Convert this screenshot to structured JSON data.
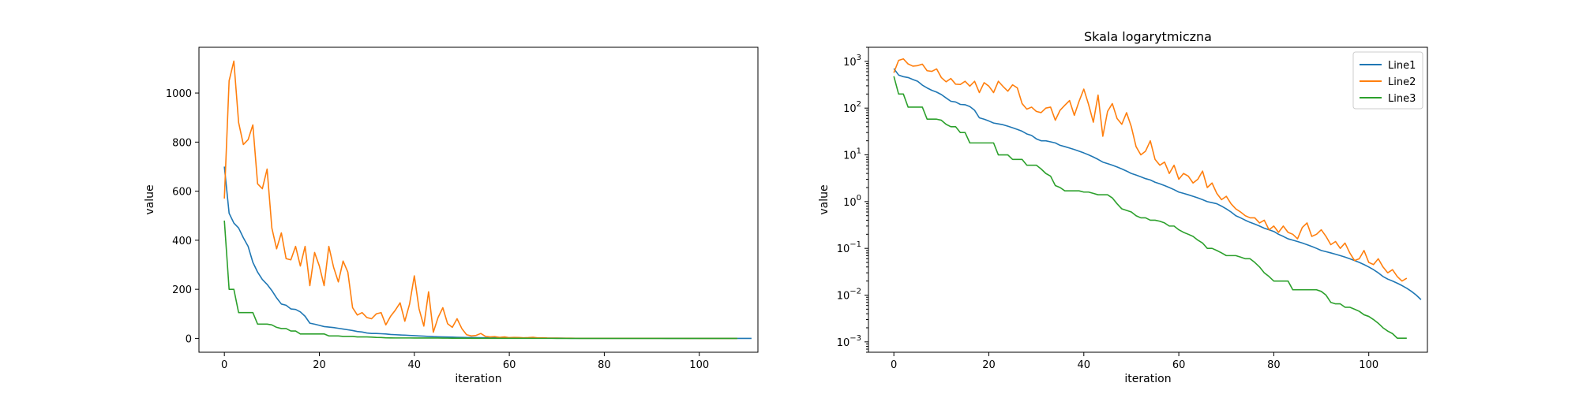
{
  "chart_data": [
    {
      "type": "line",
      "title": "",
      "xlabel": "iteration",
      "ylabel": "value",
      "yscale": "linear",
      "xlim": [
        -5.35,
        112.35
      ],
      "ylim": [
        -56.5,
        1186.5
      ],
      "xticks": [
        0,
        20,
        40,
        60,
        80,
        100
      ],
      "yticks": [
        0,
        200,
        400,
        600,
        800,
        1000
      ],
      "grid": false,
      "legend": null,
      "series": [
        {
          "color": "#1f77b4",
          "values": [
            700,
            510,
            470,
            450,
            410,
            375,
            310,
            270,
            240,
            220,
            195,
            165,
            140,
            135,
            120,
            118,
            108,
            90,
            62,
            58,
            53,
            48,
            46,
            44,
            41,
            38,
            35,
            32,
            28,
            26,
            22,
            20,
            20,
            19,
            18,
            16,
            15,
            14,
            13,
            12,
            11,
            10,
            9,
            8,
            7,
            6.5,
            6,
            5.5,
            5,
            4.5,
            4,
            3.7,
            3.4,
            3.1,
            2.9,
            2.6,
            2.4,
            2.2,
            2.0,
            1.8,
            1.6,
            1.5,
            1.4,
            1.3,
            1.2,
            1.1,
            1.0,
            0.95,
            0.9,
            0.8,
            0.7,
            0.6,
            0.5,
            0.45,
            0.4,
            0.36,
            0.33,
            0.3,
            0.27,
            0.25,
            0.23,
            0.2,
            0.18,
            0.16,
            0.15,
            0.14,
            0.13,
            0.12,
            0.11,
            0.1,
            0.09,
            0.085,
            0.08,
            0.075,
            0.07,
            0.065,
            0.06,
            0.055,
            0.05,
            0.045,
            0.04,
            0.035,
            0.03,
            0.025,
            0.022,
            0.02,
            0.018,
            0.016,
            0.014,
            0.012,
            0.01,
            0.008
          ]
        },
        {
          "color": "#ff7f0e",
          "values": [
            570,
            1050,
            1130,
            880,
            790,
            810,
            870,
            630,
            610,
            690,
            450,
            365,
            430,
            325,
            320,
            375,
            295,
            375,
            215,
            350,
            295,
            215,
            375,
            290,
            230,
            315,
            270,
            125,
            95,
            105,
            85,
            80,
            100,
            105,
            55,
            90,
            115,
            145,
            70,
            140,
            255,
            120,
            50,
            190,
            25,
            85,
            125,
            60,
            45,
            80,
            40,
            15,
            10,
            12,
            20,
            8,
            6,
            7,
            4,
            6,
            3,
            4,
            3.5,
            2.5,
            3,
            4.5,
            2,
            2.5,
            1.5,
            1.1,
            1.3,
            0.9,
            0.7,
            0.6,
            0.5,
            0.45,
            0.45,
            0.35,
            0.4,
            0.25,
            0.3,
            0.22,
            0.3,
            0.22,
            0.2,
            0.16,
            0.28,
            0.35,
            0.18,
            0.2,
            0.25,
            0.18,
            0.12,
            0.14,
            0.1,
            0.13,
            0.08,
            0.055,
            0.06,
            0.09,
            0.05,
            0.045,
            0.06,
            0.04,
            0.03,
            0.035,
            0.025,
            0.02,
            0.023
          ]
        },
        {
          "color": "#2ca02c",
          "values": [
            480,
            200,
            200,
            105,
            105,
            105,
            105,
            58,
            58,
            58,
            55,
            45,
            40,
            40,
            30,
            30,
            18,
            18,
            18,
            18,
            18,
            18,
            10,
            10,
            10,
            8,
            8,
            8,
            6,
            6,
            6,
            5,
            4,
            3.5,
            2.2,
            2.0,
            1.7,
            1.7,
            1.7,
            1.7,
            1.6,
            1.6,
            1.5,
            1.4,
            1.4,
            1.4,
            1.2,
            0.9,
            0.7,
            0.65,
            0.6,
            0.5,
            0.45,
            0.45,
            0.4,
            0.4,
            0.38,
            0.35,
            0.3,
            0.3,
            0.25,
            0.22,
            0.2,
            0.18,
            0.15,
            0.13,
            0.1,
            0.1,
            0.09,
            0.08,
            0.07,
            0.07,
            0.07,
            0.065,
            0.06,
            0.06,
            0.05,
            0.04,
            0.03,
            0.025,
            0.02,
            0.02,
            0.02,
            0.02,
            0.013,
            0.013,
            0.013,
            0.013,
            0.013,
            0.013,
            0.012,
            0.01,
            0.007,
            0.0065,
            0.0065,
            0.0055,
            0.0055,
            0.005,
            0.0045,
            0.0038,
            0.0035,
            0.003,
            0.0025,
            0.002,
            0.0017,
            0.0015,
            0.0012,
            0.0012,
            0.0012
          ]
        }
      ]
    },
    {
      "type": "line",
      "title": "Skala logarytmiczna",
      "xlabel": "iteration",
      "ylabel": "value",
      "yscale": "log",
      "xlim": [
        -5.35,
        112.35
      ],
      "ylim": [
        0.0006,
        2000
      ],
      "xticks": [
        0,
        20,
        40,
        60,
        80,
        100
      ],
      "yticks": [
        0.001,
        0.01,
        0.1,
        1,
        10,
        100,
        1000
      ],
      "ytick_labels": [
        [
          "10",
          "−3"
        ],
        [
          "10",
          "−2"
        ],
        [
          "10",
          "−1"
        ],
        [
          "10",
          "0"
        ],
        [
          "10",
          "1"
        ],
        [
          "10",
          "2"
        ],
        [
          "10",
          "3"
        ]
      ],
      "grid": false,
      "legend": {
        "position": "upper-right",
        "entries": [
          "Line1",
          "Line2",
          "Line3"
        ]
      },
      "series_ref": [
        0,
        1,
        2
      ]
    }
  ]
}
